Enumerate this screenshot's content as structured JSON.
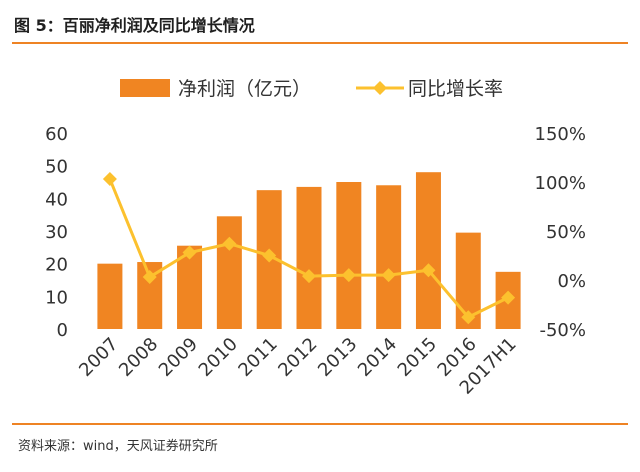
{
  "header": {
    "title": "图 5：百丽净利润及同比增长情况"
  },
  "footer": {
    "source": "资料来源：wind，天风证券研究所"
  },
  "colors": {
    "accent": "#ee8324",
    "bar": "#f08522",
    "line": "#fcc12e",
    "text": "#333333"
  },
  "chart_data": {
    "type": "bar",
    "categories": [
      "2007",
      "2008",
      "2009",
      "2010",
      "2011",
      "2012",
      "2013",
      "2014",
      "2015",
      "2016",
      "2017H1"
    ],
    "series": [
      {
        "name": "净利润（亿元）",
        "type": "bar",
        "axis": "left",
        "values": [
          20,
          20.5,
          25.5,
          34.5,
          42.5,
          43.5,
          45,
          44,
          48,
          29.5,
          17.5
        ]
      },
      {
        "name": "同比增长率",
        "type": "line",
        "axis": "right",
        "values": [
          103,
          3,
          28,
          37,
          25,
          4,
          5,
          5,
          10,
          -38,
          -18
        ]
      }
    ],
    "left_axis": {
      "ylim": [
        0,
        60
      ],
      "ticks": [
        "0",
        "10",
        "20",
        "30",
        "40",
        "50",
        "60"
      ]
    },
    "right_axis": {
      "ylim": [
        -50,
        150
      ],
      "ticks": [
        "-50%",
        "0%",
        "50%",
        "100%",
        "150%"
      ]
    },
    "legend": {
      "position": "top"
    },
    "grid": false
  }
}
